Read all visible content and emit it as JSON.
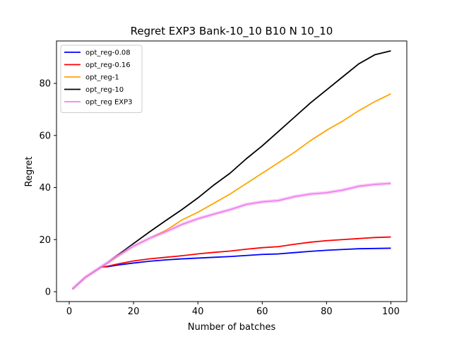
{
  "chart_data": {
    "type": "line",
    "title": "Regret EXP3 Bank-10_10 B10 N 10_10",
    "xlabel": "Number of batches",
    "ylabel": "Regret",
    "xlim": [
      1,
      100
    ],
    "ylim": [
      0,
      95
    ],
    "xticks": [
      "0",
      "20",
      "40",
      "60",
      "80",
      "100"
    ],
    "yticks": [
      "0",
      "20",
      "40",
      "60",
      "80"
    ],
    "legend_position": "top-left",
    "grid": false,
    "x": [
      1,
      5,
      10,
      12,
      15,
      20,
      25,
      30,
      35,
      40,
      45,
      50,
      55,
      60,
      65,
      70,
      75,
      80,
      85,
      90,
      95,
      100
    ],
    "series": [
      {
        "name": "opt_reg-0.08",
        "color": "#0000ff",
        "values": [
          1,
          5.5,
          9.5,
          9.6,
          10.2,
          11,
          11.7,
          12.2,
          12.6,
          12.9,
          13.2,
          13.5,
          13.9,
          14.3,
          14.5,
          15,
          15.5,
          15.9,
          16.2,
          16.5,
          16.6,
          16.7
        ]
      },
      {
        "name": "opt_reg-0.16",
        "color": "#ff0000",
        "values": [
          1,
          5.5,
          9.5,
          9.8,
          10.6,
          11.8,
          12.6,
          13.2,
          13.8,
          14.5,
          15.1,
          15.6,
          16.3,
          16.9,
          17.3,
          18.2,
          19,
          19.6,
          20,
          20.4,
          20.8,
          21
        ]
      },
      {
        "name": "opt_reg-1",
        "color": "#ffa500",
        "values": [
          1,
          5.5,
          9.6,
          11,
          13.5,
          17.5,
          20.5,
          23.5,
          27.5,
          30.5,
          34,
          37.5,
          41.5,
          45.5,
          49.5,
          53.5,
          58,
          62,
          65.5,
          69.5,
          73,
          76
        ]
      },
      {
        "name": "opt_reg-10",
        "color": "#000000",
        "values": [
          1,
          5.5,
          9.6,
          11.2,
          14,
          18.5,
          23,
          27.3,
          31.5,
          36,
          41,
          45.5,
          51,
          56,
          61.5,
          67,
          72.5,
          77.5,
          82.5,
          87.5,
          91,
          92.5
        ]
      },
      {
        "name": "opt_reg EXP3",
        "color": "#ee82ee",
        "values": [
          1,
          5.5,
          9.6,
          11.2,
          13.8,
          17.5,
          20.5,
          23,
          25.8,
          28,
          29.8,
          31.5,
          33.5,
          34.5,
          35,
          36.5,
          37.5,
          38,
          39,
          40.5,
          41.2,
          41.6
        ]
      }
    ]
  }
}
